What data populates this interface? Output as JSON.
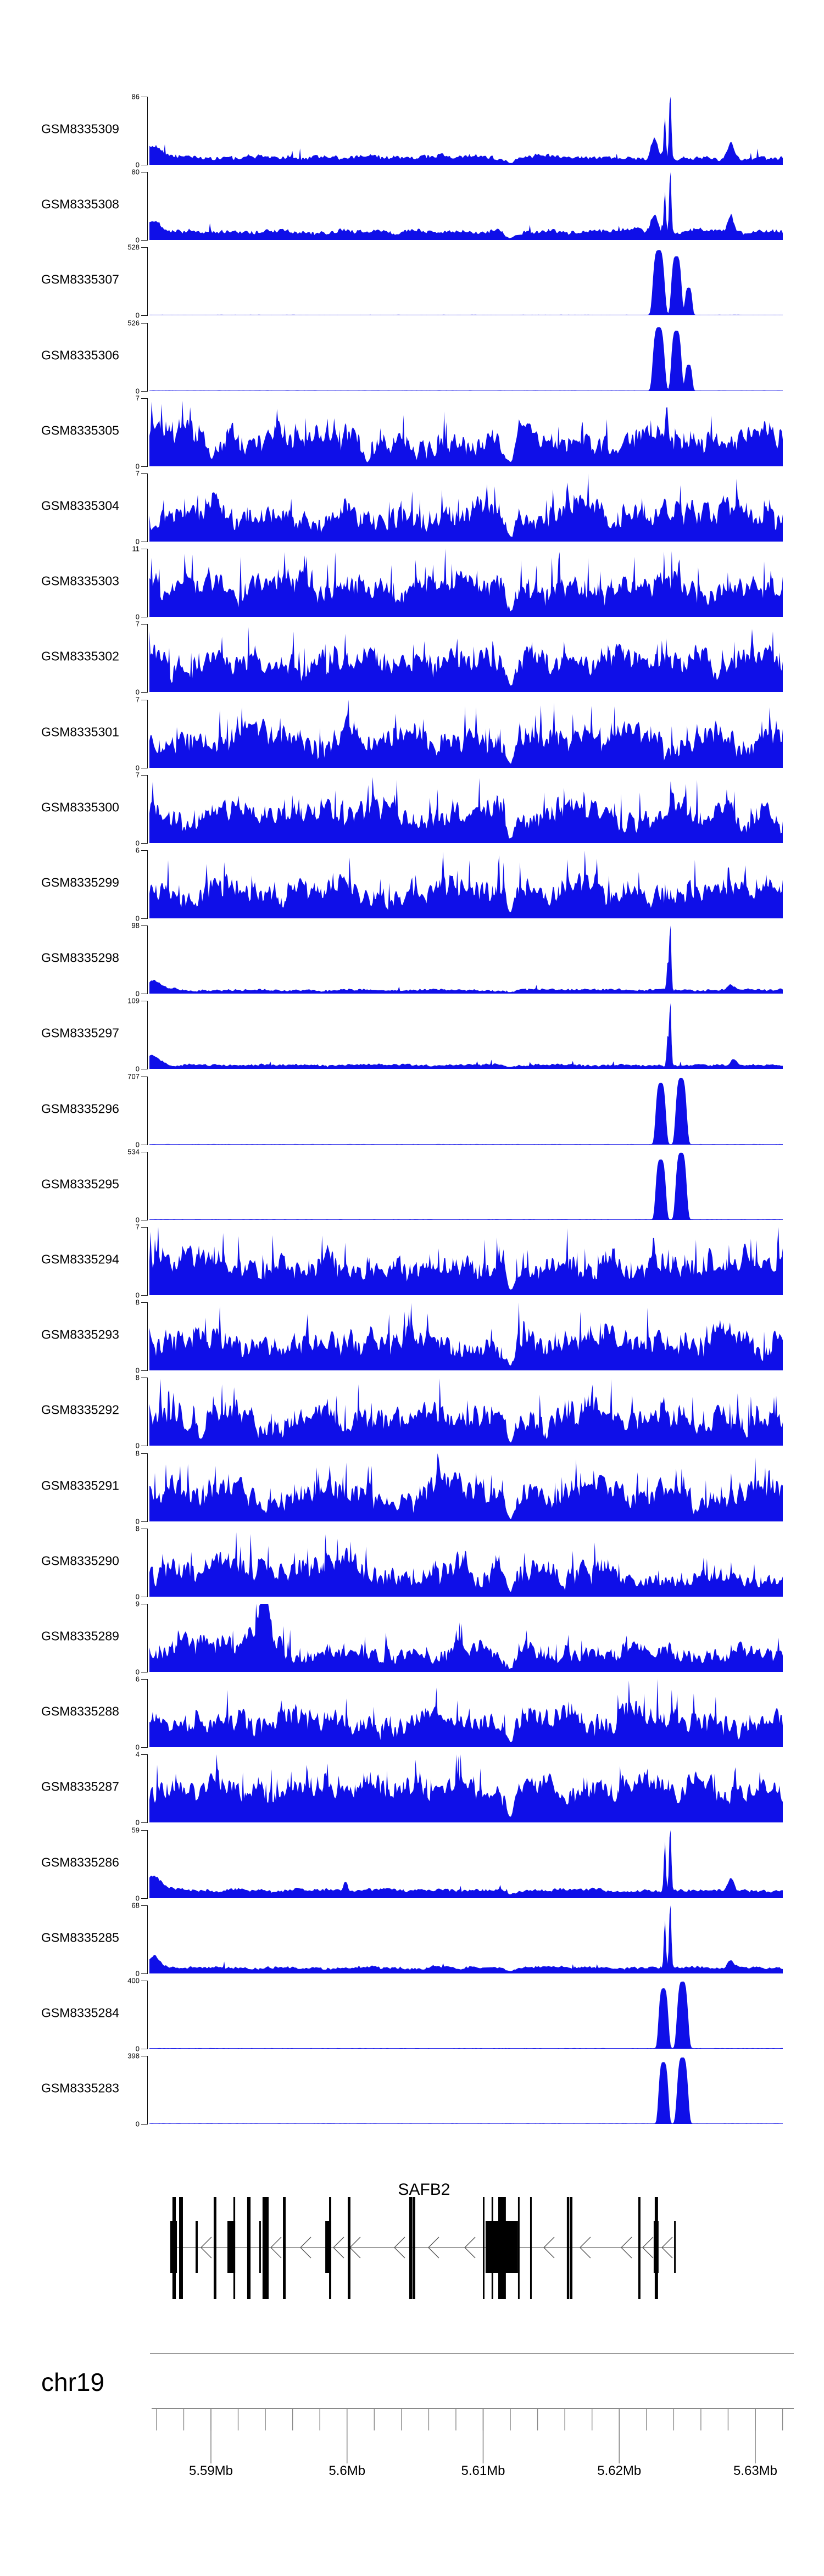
{
  "colors": {
    "signal_blue": "#0f0fe8",
    "axis_black": "#111111",
    "ruler_gray": "#8a8a8a",
    "separator_gray": "#9c9c9c",
    "gene_black": "#000000",
    "chevron_gray": "#555555",
    "text_black": "#000000"
  },
  "chart_data": {
    "type": "area",
    "description": "Genome browser coverage tracks (read pileup) around the SAFB2 locus",
    "chromosome": "chr19",
    "y_zero_label": "0",
    "x_axis": {
      "unit": "Mb",
      "visible_range_mb": [
        5.58548,
        5.63202
      ],
      "minor_tick_step_mb": 0.002,
      "minor_tick_start_mb": 5.586,
      "minor_tick_end_mb": 5.632,
      "major_ticks": [
        {
          "mb": 5.59,
          "label": "5.59Mb"
        },
        {
          "mb": 5.6,
          "label": "5.6Mb"
        },
        {
          "mb": 5.61,
          "label": "5.61Mb"
        },
        {
          "mb": 5.62,
          "label": "5.62Mb"
        },
        {
          "mb": 5.63,
          "label": "5.63Mb"
        }
      ]
    },
    "tracks": [
      {
        "label": "GSM8335309",
        "ymax": 86,
        "ymax_label": "86",
        "kind": "low",
        "base": 0.09,
        "rough": 0.13,
        "spike_p": 0.015,
        "spike_h": 0.15,
        "left_bump": 0.16,
        "peaks": [
          [
            5.6226,
            0.00035,
            0.28,
            2
          ],
          [
            5.62335,
            0.0001,
            0.62,
            2
          ],
          [
            5.62375,
            0.00011,
            1.0,
            2
          ],
          [
            5.6282,
            0.0003,
            0.26,
            2
          ]
        ],
        "dips": [
          [
            5.612,
            0.0005,
            0.75
          ]
        ],
        "seed": 150
      },
      {
        "label": "GSM8335308",
        "ymax": 80,
        "ymax_label": "80",
        "kind": "low",
        "base": 0.1,
        "rough": 0.13,
        "spike_p": 0.015,
        "spike_h": 0.15,
        "left_bump": 0.18,
        "peaks": [
          [
            5.6226,
            0.00035,
            0.26,
            2
          ],
          [
            5.62335,
            0.0001,
            0.65,
            2
          ],
          [
            5.62375,
            0.00011,
            0.95,
            2
          ],
          [
            5.6282,
            0.0003,
            0.24,
            2
          ]
        ],
        "dips": [
          [
            5.612,
            0.0005,
            0.75
          ]
        ],
        "seed": 247
      },
      {
        "label": "GSM8335307",
        "ymax": 528,
        "ymax_label": "528",
        "kind": "tower",
        "base": 0.007,
        "rough": 0.004,
        "spike_p": 0,
        "spike_h": 0,
        "left_bump": 0,
        "peaks": [
          [
            5.6229,
            0.00048,
            0.95,
            4
          ],
          [
            5.6242,
            0.00042,
            0.86,
            4
          ],
          [
            5.6251,
            0.0003,
            0.4,
            4
          ]
        ],
        "dips": [],
        "seed": 344
      },
      {
        "label": "GSM8335306",
        "ymax": 526,
        "ymax_label": "526",
        "kind": "tower",
        "base": 0.007,
        "rough": 0.004,
        "spike_p": 0,
        "spike_h": 0,
        "left_bump": 0,
        "peaks": [
          [
            5.6229,
            0.00048,
            0.93,
            4
          ],
          [
            5.6242,
            0.00042,
            0.88,
            4
          ],
          [
            5.6251,
            0.0003,
            0.38,
            4
          ]
        ],
        "dips": [],
        "seed": 441
      },
      {
        "label": "GSM8335305",
        "ymax": 7,
        "ymax_label": "7",
        "kind": "dense",
        "base": 0.28,
        "rough": 0.62,
        "spike_p": 0.05,
        "spike_h": 0.45,
        "left_bump": 0,
        "peaks": [
          [
            5.6235,
            0.00015,
            0.45,
            2
          ]
        ],
        "dips": [
          [
            5.612,
            0.0004,
            0.85
          ]
        ],
        "seed": 538
      },
      {
        "label": "GSM8335304",
        "ymax": 7,
        "ymax_label": "7",
        "kind": "dense",
        "base": 0.28,
        "rough": 0.62,
        "spike_p": 0.05,
        "spike_h": 0.45,
        "left_bump": 0,
        "peaks": [
          [
            5.6162,
            0.00015,
            0.45,
            2
          ]
        ],
        "dips": [
          [
            5.612,
            0.0004,
            0.85
          ]
        ],
        "seed": 635
      },
      {
        "label": "GSM8335303",
        "ymax": 11,
        "ymax_label": "11",
        "kind": "dense",
        "base": 0.3,
        "rough": 0.62,
        "spike_p": 0.06,
        "spike_h": 0.55,
        "left_bump": 0,
        "peaks": [],
        "dips": [
          [
            5.612,
            0.0004,
            0.85
          ]
        ],
        "seed": 732
      },
      {
        "label": "GSM8335302",
        "ymax": 7,
        "ymax_label": "7",
        "kind": "dense",
        "base": 0.28,
        "rough": 0.62,
        "spike_p": 0.05,
        "spike_h": 0.45,
        "left_bump": 0,
        "peaks": [],
        "dips": [
          [
            5.612,
            0.0004,
            0.85
          ]
        ],
        "seed": 829
      },
      {
        "label": "GSM8335301",
        "ymax": 7,
        "ymax_label": "7",
        "kind": "dense",
        "base": 0.28,
        "rough": 0.62,
        "spike_p": 0.05,
        "spike_h": 0.45,
        "left_bump": 0,
        "peaks": [],
        "dips": [
          [
            5.612,
            0.0004,
            0.85
          ]
        ],
        "seed": 926
      },
      {
        "label": "GSM8335300",
        "ymax": 7,
        "ymax_label": "7",
        "kind": "dense",
        "base": 0.28,
        "rough": 0.62,
        "spike_p": 0.05,
        "spike_h": 0.45,
        "left_bump": 0,
        "peaks": [],
        "dips": [
          [
            5.612,
            0.0004,
            0.85
          ]
        ],
        "seed": 1023
      },
      {
        "label": "GSM8335299",
        "ymax": 6,
        "ymax_label": "6",
        "kind": "dense",
        "base": 0.28,
        "rough": 0.6,
        "spike_p": 0.05,
        "spike_h": 0.45,
        "left_bump": 0,
        "peaks": [],
        "dips": [
          [
            5.612,
            0.0004,
            0.85
          ]
        ],
        "seed": 1120
      },
      {
        "label": "GSM8335298",
        "ymax": 98,
        "ymax_label": "98",
        "kind": "low",
        "base": 0.045,
        "rough": 0.06,
        "spike_p": 0.008,
        "spike_h": 0.08,
        "left_bump": 0.15,
        "peaks": [
          [
            5.62355,
            9e-05,
            0.4,
            2
          ],
          [
            5.62375,
            0.0001,
            1.0,
            2
          ],
          [
            5.6282,
            0.0003,
            0.08,
            2
          ]
        ],
        "dips": [
          [
            5.612,
            0.0005,
            0.6
          ]
        ],
        "seed": 1217
      },
      {
        "label": "GSM8335297",
        "ymax": 109,
        "ymax_label": "109",
        "kind": "low",
        "base": 0.045,
        "rough": 0.06,
        "spike_p": 0.008,
        "spike_h": 0.08,
        "left_bump": 0.13,
        "peaks": [
          [
            5.62355,
            9e-05,
            0.45,
            2
          ],
          [
            5.62375,
            0.0001,
            1.0,
            2
          ],
          [
            5.6284,
            0.0003,
            0.09,
            2
          ]
        ],
        "dips": [
          [
            5.612,
            0.0005,
            0.6
          ]
        ],
        "seed": 1314
      },
      {
        "label": "GSM8335296",
        "ymax": 707,
        "ymax_label": "707",
        "kind": "tower",
        "base": 0.007,
        "rough": 0.004,
        "spike_p": 0,
        "spike_h": 0,
        "left_bump": 0,
        "peaks": [
          [
            5.62305,
            0.00042,
            0.9,
            4
          ],
          [
            5.62455,
            0.00045,
            0.97,
            4
          ]
        ],
        "dips": [],
        "seed": 1411
      },
      {
        "label": "GSM8335295",
        "ymax": 534,
        "ymax_label": "534",
        "kind": "tower",
        "base": 0.007,
        "rough": 0.004,
        "spike_p": 0,
        "spike_h": 0,
        "left_bump": 0,
        "peaks": [
          [
            5.62305,
            0.00042,
            0.88,
            4
          ],
          [
            5.62455,
            0.00045,
            0.98,
            4
          ]
        ],
        "dips": [],
        "seed": 1508
      },
      {
        "label": "GSM8335294",
        "ymax": 7,
        "ymax_label": "7",
        "kind": "dense",
        "base": 0.28,
        "rough": 0.62,
        "spike_p": 0.05,
        "spike_h": 0.45,
        "left_bump": 0,
        "peaks": [],
        "dips": [
          [
            5.612,
            0.0004,
            0.85
          ]
        ],
        "seed": 1605
      },
      {
        "label": "GSM8335293",
        "ymax": 8,
        "ymax_label": "8",
        "kind": "dense",
        "base": 0.28,
        "rough": 0.62,
        "spike_p": 0.05,
        "spike_h": 0.45,
        "left_bump": 0,
        "peaks": [],
        "dips": [
          [
            5.612,
            0.0004,
            0.85
          ]
        ],
        "seed": 1702
      },
      {
        "label": "GSM8335292",
        "ymax": 8,
        "ymax_label": "8",
        "kind": "dense",
        "base": 0.28,
        "rough": 0.62,
        "spike_p": 0.05,
        "spike_h": 0.45,
        "left_bump": 0,
        "peaks": [],
        "dips": [
          [
            5.612,
            0.0004,
            0.85
          ]
        ],
        "seed": 1799
      },
      {
        "label": "GSM8335291",
        "ymax": 8,
        "ymax_label": "8",
        "kind": "dense",
        "base": 0.28,
        "rough": 0.62,
        "spike_p": 0.05,
        "spike_h": 0.45,
        "left_bump": 0,
        "peaks": [],
        "dips": [
          [
            5.612,
            0.0004,
            0.85
          ]
        ],
        "seed": 1896
      },
      {
        "label": "GSM8335290",
        "ymax": 8,
        "ymax_label": "8",
        "kind": "dense",
        "base": 0.28,
        "rough": 0.62,
        "spike_p": 0.05,
        "spike_h": 0.45,
        "left_bump": 0,
        "peaks": [],
        "dips": [
          [
            5.612,
            0.0004,
            0.85
          ]
        ],
        "damp": [
          5.619,
          0.55
        ],
        "seed": 1993
      },
      {
        "label": "GSM8335289",
        "ymax": 9,
        "ymax_label": "9",
        "kind": "dense",
        "base": 0.3,
        "rough": 0.58,
        "spike_p": 0.05,
        "spike_h": 0.45,
        "left_bump": 0,
        "peaks": [
          [
            5.5941,
            0.0004,
            0.65,
            2
          ],
          [
            5.5934,
            0.0007,
            0.45,
            2
          ]
        ],
        "dips": [
          [
            5.612,
            0.0004,
            0.85
          ]
        ],
        "damp": [
          5.5962,
          0.72
        ],
        "seed": 2090
      },
      {
        "label": "GSM8335288",
        "ymax": 6,
        "ymax_label": "6",
        "kind": "dense",
        "base": 0.28,
        "rough": 0.6,
        "spike_p": 0.05,
        "spike_h": 0.45,
        "left_bump": 0,
        "peaks": [
          [
            5.6239,
            0.0002,
            0.4,
            2
          ]
        ],
        "dips": [
          [
            5.612,
            0.0004,
            0.85
          ]
        ],
        "seed": 2187
      },
      {
        "label": "GSM8335287",
        "ymax": 4,
        "ymax_label": "4",
        "kind": "dense",
        "base": 0.4,
        "rough": 0.55,
        "spike_p": 0.05,
        "spike_h": 0.4,
        "left_bump": 0,
        "peaks": [],
        "dips": [
          [
            5.612,
            0.0004,
            0.85
          ]
        ],
        "seed": 2284
      },
      {
        "label": "GSM8335286",
        "ymax": 59,
        "ymax_label": "59",
        "kind": "low",
        "base": 0.1,
        "rough": 0.09,
        "spike_p": 0.01,
        "spike_h": 0.1,
        "left_bump": 0.2,
        "peaks": [
          [
            5.62335,
            0.0001,
            0.7,
            2
          ],
          [
            5.62375,
            0.00011,
            1.0,
            2
          ],
          [
            5.6282,
            0.0003,
            0.18,
            2
          ],
          [
            5.5999,
            0.0002,
            0.14,
            2
          ]
        ],
        "dips": [
          [
            5.612,
            0.0005,
            0.5
          ]
        ],
        "seed": 2381
      },
      {
        "label": "GSM8335285",
        "ymax": 68,
        "ymax_label": "68",
        "kind": "low",
        "base": 0.07,
        "rough": 0.08,
        "spike_p": 0.01,
        "spike_h": 0.1,
        "left_bump": 0.18,
        "peaks": [
          [
            5.62335,
            0.0001,
            0.72,
            2
          ],
          [
            5.62375,
            0.00011,
            1.0,
            2
          ],
          [
            5.6282,
            0.0003,
            0.12,
            2
          ]
        ],
        "dips": [
          [
            5.612,
            0.0005,
            0.5
          ]
        ],
        "seed": 2478
      },
      {
        "label": "GSM8335284",
        "ymax": 400,
        "ymax_label": "400",
        "kind": "tower",
        "base": 0.007,
        "rough": 0.004,
        "spike_p": 0,
        "spike_h": 0,
        "left_bump": 0,
        "peaks": [
          [
            5.62325,
            0.0004,
            0.88,
            4
          ],
          [
            5.62465,
            0.00045,
            0.98,
            4
          ]
        ],
        "dips": [],
        "seed": 2575
      },
      {
        "label": "GSM8335283",
        "ymax": 398,
        "ymax_label": "398",
        "kind": "tower",
        "base": 0.007,
        "rough": 0.004,
        "spike_p": 0,
        "spike_h": 0,
        "left_bump": 0,
        "peaks": [
          [
            5.62325,
            0.0004,
            0.9,
            4
          ],
          [
            5.62465,
            0.00045,
            0.97,
            4
          ]
        ],
        "dips": [],
        "seed": 2672
      }
    ],
    "gene_track": {
      "gene": "SAFB2",
      "strand": "-",
      "line_mb": [
        5.58717,
        5.62415
      ],
      "arrows_mb": [
        5.58927,
        5.5944,
        5.59658,
        5.599,
        5.60021,
        5.60348,
        5.60598,
        5.60865,
        5.61446,
        5.61712,
        5.62015,
        5.62172,
        5.62314
      ],
      "exons": [
        {
          "start": 5.58701,
          "end": 5.5875,
          "height": "mid"
        },
        {
          "start": 5.58717,
          "end": 5.58742,
          "height": "tall"
        },
        {
          "start": 5.58766,
          "end": 5.58778,
          "height": "tall"
        },
        {
          "start": 5.58778,
          "end": 5.58794,
          "height": "tall"
        },
        {
          "start": 5.58887,
          "end": 5.58903,
          "height": "mid"
        },
        {
          "start": 5.5902,
          "end": 5.5904,
          "height": "tall"
        },
        {
          "start": 5.59121,
          "end": 5.59178,
          "height": "mid"
        },
        {
          "start": 5.59165,
          "end": 5.59178,
          "height": "tall"
        },
        {
          "start": 5.59266,
          "end": 5.59291,
          "height": "tall"
        },
        {
          "start": 5.59355,
          "end": 5.59367,
          "height": "mid"
        },
        {
          "start": 5.59379,
          "end": 5.59424,
          "height": "tall"
        },
        {
          "start": 5.59529,
          "end": 5.59549,
          "height": "tall"
        },
        {
          "start": 5.5984,
          "end": 5.59884,
          "height": "mid"
        },
        {
          "start": 5.59868,
          "end": 5.59884,
          "height": "tall"
        },
        {
          "start": 5.60005,
          "end": 5.60025,
          "height": "tall"
        },
        {
          "start": 5.60457,
          "end": 5.60481,
          "height": "tall"
        },
        {
          "start": 5.60485,
          "end": 5.60501,
          "height": "tall"
        },
        {
          "start": 5.61018,
          "end": 5.61256,
          "height": "mid"
        },
        {
          "start": 5.60998,
          "end": 5.6101,
          "height": "tall"
        },
        {
          "start": 5.61062,
          "end": 5.61074,
          "height": "tall"
        },
        {
          "start": 5.61111,
          "end": 5.61167,
          "height": "tall"
        },
        {
          "start": 5.61256,
          "end": 5.61268,
          "height": "tall"
        },
        {
          "start": 5.61345,
          "end": 5.61357,
          "height": "tall"
        },
        {
          "start": 5.61615,
          "end": 5.61632,
          "height": "tall"
        },
        {
          "start": 5.61636,
          "end": 5.61656,
          "height": "tall"
        },
        {
          "start": 5.6214,
          "end": 5.62156,
          "height": "tall"
        },
        {
          "start": 5.62253,
          "end": 5.62289,
          "height": "mid"
        },
        {
          "start": 5.62261,
          "end": 5.62285,
          "height": "tall"
        },
        {
          "start": 5.62403,
          "end": 5.62415,
          "height": "mid"
        }
      ]
    }
  }
}
